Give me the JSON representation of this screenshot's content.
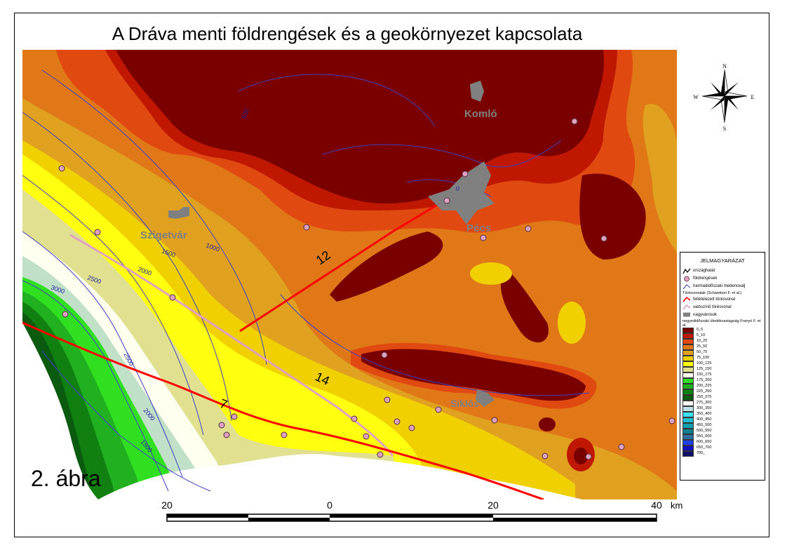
{
  "title": "A Dráva menti földrengések és a geokörnyezet kapcsolata",
  "figure_label": "2. ábra",
  "compass": {
    "n": "N",
    "s": "S",
    "e": "E",
    "w": "W",
    "icon": "compass-rose-icon"
  },
  "towns": {
    "komlo": "Komló",
    "pecs": "Pécs",
    "szigetvar": "Szigetvár",
    "siklos": "Siklós"
  },
  "contour_labels": [
    "1500",
    "1000",
    "2000",
    "2500",
    "3000",
    "2500",
    "2000",
    "1500",
    "500",
    "0"
  ],
  "fault_labels": [
    "12",
    "14",
    "7"
  ],
  "scale": {
    "ticks": [
      "20",
      "0",
      "20",
      "40"
    ],
    "unit": "km"
  },
  "legend": {
    "title": "JELMAGYARÁZAT",
    "symbols": [
      "országhatár",
      "földrengések",
      "harmadidőszaki medencealj",
      "Törésvonalak (Schweitzer F. et al.)",
      "feltételezett törésvonal",
      "valószínű törésvonal",
      "nagyvárosok",
      "negyedidőszaki üledékvastagság Franyó F. et al."
    ],
    "classes": [
      {
        "label": "0_5",
        "color": "#7a0000"
      },
      {
        "label": "5_10",
        "color": "#c01800"
      },
      {
        "label": "10_25",
        "color": "#e04a10"
      },
      {
        "label": "25_50",
        "color": "#e07818"
      },
      {
        "label": "50_75",
        "color": "#e0a020"
      },
      {
        "label": "75_100",
        "color": "#f0d000"
      },
      {
        "label": "100_125",
        "color": "#ffff10"
      },
      {
        "label": "125_150",
        "color": "#e0e090"
      },
      {
        "label": "150_175",
        "color": "#fffff0"
      },
      {
        "label": "175_200",
        "color": "#30e020"
      },
      {
        "label": "200_225",
        "color": "#20b020"
      },
      {
        "label": "225_250",
        "color": "#108010"
      },
      {
        "label": "250_275",
        "color": "#0a5a10"
      },
      {
        "label": "275_300",
        "color": "#ffffff"
      },
      {
        "label": "300_350",
        "color": "#c0e0e8"
      },
      {
        "label": "350_400",
        "color": "#40e0f0"
      },
      {
        "label": "400_450",
        "color": "#20c0d0"
      },
      {
        "label": "450_500",
        "color": "#10a0b0"
      },
      {
        "label": "500_550",
        "color": "#108090"
      },
      {
        "label": "550_600",
        "color": "#3070a0"
      },
      {
        "label": "600_650",
        "color": "#2040f0"
      },
      {
        "label": "650_700",
        "color": "#1010c0"
      },
      {
        "label": "700_",
        "color": "#10106a"
      }
    ]
  },
  "colors": {
    "earthquake": "#e0a0c0",
    "fault_main": "#ff0000",
    "fault_probable": "#e0a0c0",
    "city": "#808080",
    "contour": "#4040c0"
  }
}
